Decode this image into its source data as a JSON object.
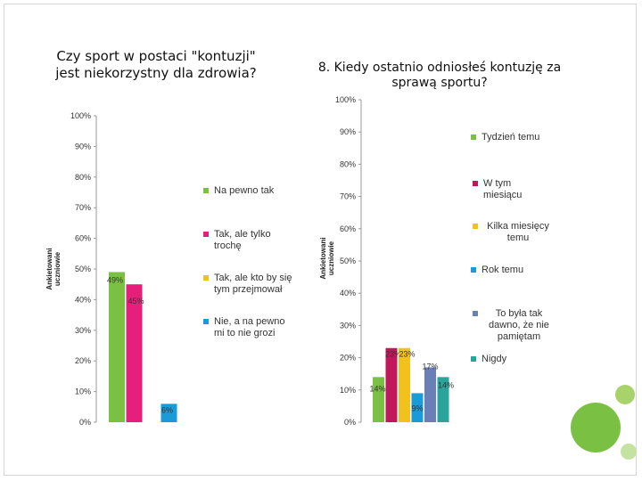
{
  "decor": {
    "green": "#7ac143",
    "green_light": "#a8d26a",
    "green_pale": "#c5e3a0"
  },
  "chart_data": [
    {
      "type": "bar",
      "title": "Czy sport w postaci \"kontuzji\" jest niekorzystny dla zdrowia?",
      "ylabel": "Ankietowani uczniowie",
      "ylim": [
        0,
        100
      ],
      "yticks": [
        "0%",
        "10%",
        "20%",
        "30%",
        "40%",
        "50%",
        "60%",
        "70%",
        "80%",
        "90%",
        "100%"
      ],
      "categories": [
        "Na pewno tak",
        "Tak, ale tylko trochę",
        "Tak, ale kto by się tym przejmował",
        "Nie, a na pewno mi to nie grozi"
      ],
      "values": [
        49,
        45,
        0,
        6
      ],
      "labels": [
        "49%",
        "45%",
        "",
        "6%"
      ],
      "colors": [
        "#7ac143",
        "#e6207a",
        "#f2c21c",
        "#1a9bd7"
      ]
    },
    {
      "type": "bar",
      "title": "8. Kiedy ostatnio odniosłeś kontuzję za sprawą sportu?",
      "ylabel": "Ankietowani uczniowie",
      "ylim": [
        0,
        100
      ],
      "yticks": [
        "0%",
        "10%",
        "20%",
        "30%",
        "40%",
        "50%",
        "60%",
        "70%",
        "80%",
        "90%",
        "100%"
      ],
      "categories": [
        "Tydzień temu",
        "W tym miesiącu",
        "Kilka miesięcy temu",
        "Rok temu",
        "To była tak dawno, że nie pamiętam",
        "Nigdy"
      ],
      "values": [
        14,
        23,
        23,
        9,
        17,
        14
      ],
      "labels": [
        "14%",
        "23%",
        "23%",
        "9%",
        "17%",
        "14%"
      ],
      "colors": [
        "#7ac143",
        "#c2185b",
        "#f2c21c",
        "#1a9bd7",
        "#6a7fb5",
        "#2aa39a"
      ]
    }
  ]
}
